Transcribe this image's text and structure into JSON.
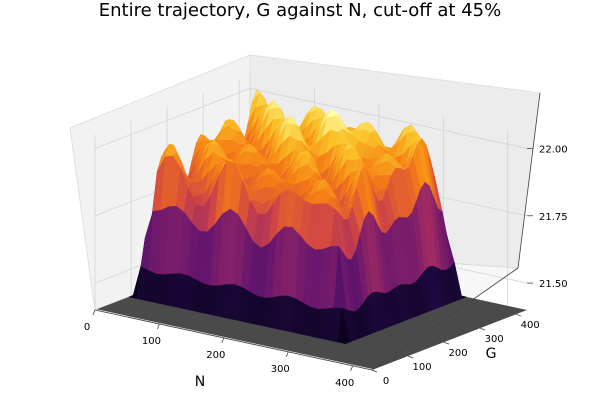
{
  "chart_data": {
    "type": "surface3d",
    "title": "Entire trajectory, G against N, cut-off at 45%",
    "xlabel": "N",
    "ylabel": "G",
    "zlabel": "",
    "colormap": "inferno",
    "cutoff_color": "#4a4a4a",
    "x_ticks": [
      "0",
      "100",
      "200",
      "300",
      "400"
    ],
    "y_ticks": [
      "0",
      "100",
      "200",
      "300",
      "400"
    ],
    "z_ticks": [
      "21.50",
      "21.75",
      "22.00"
    ],
    "xlim": [
      0,
      430
    ],
    "ylim": [
      0,
      430
    ],
    "zlim": [
      21.4,
      22.05
    ],
    "plateau": {
      "x_range": [
        0,
        330
      ],
      "y_range": [
        100,
        430
      ],
      "baseline_z": 21.4,
      "plateau_z": 21.85,
      "peak_z": 22.05
    }
  }
}
